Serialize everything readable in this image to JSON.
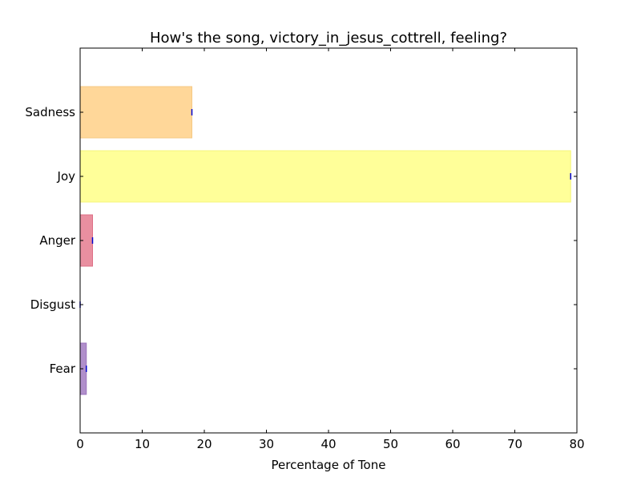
{
  "chart_data": {
    "type": "bar",
    "orientation": "horizontal",
    "title": "How's the song, victory_in_jesus_cottrell, feeling?",
    "xlabel": "Percentage of Tone",
    "ylabel": "",
    "xlim": [
      0,
      80
    ],
    "xticks": [
      0,
      10,
      20,
      30,
      40,
      50,
      60,
      70,
      80
    ],
    "categories": [
      "Fear",
      "Disgust",
      "Anger",
      "Joy",
      "Sadness"
    ],
    "values": [
      1,
      0,
      2,
      79,
      18
    ],
    "colors": [
      "#b08fcb",
      "#7cbb7c",
      "#e98fa0",
      "#ffff99",
      "#ffd799"
    ],
    "edge_colors": [
      "#9a72bd",
      "#5fa35f",
      "#de6f86",
      "#f5f57a",
      "#f5c884"
    ],
    "error_bar_color": "#0000cc",
    "grid": false,
    "legend": "none"
  }
}
